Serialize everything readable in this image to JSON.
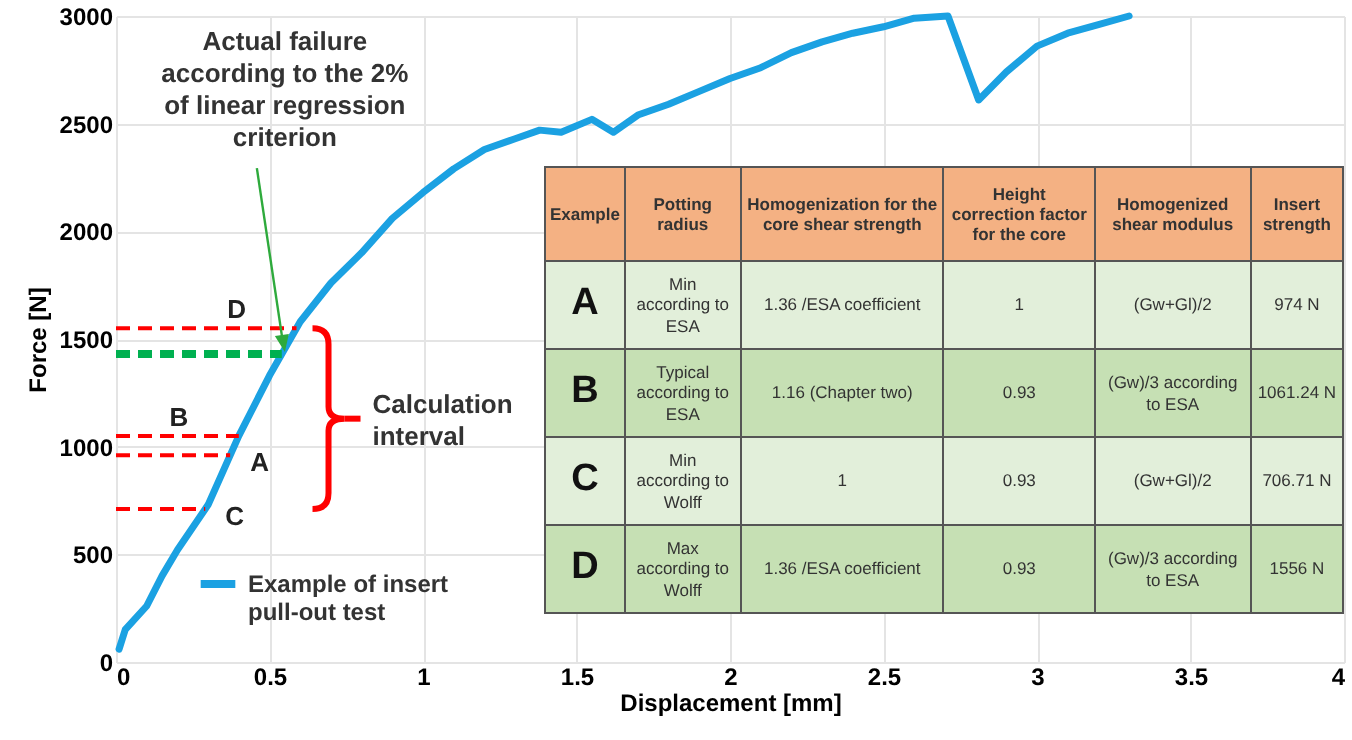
{
  "chart_data": [
    {
      "type": "line",
      "xlabel": "Displacement [mm]",
      "ylabel": "Force [N]",
      "xlim": [
        0,
        4
      ],
      "xticks": [
        0,
        0.5,
        1,
        1.5,
        2,
        2.5,
        3,
        3.5,
        4
      ],
      "ylim": [
        0,
        3000
      ],
      "yticks": [
        0,
        500,
        1000,
        1500,
        2000,
        2500,
        3000
      ],
      "grid": true,
      "legend": "bottom left",
      "x": [
        0.01,
        0.03,
        0.1,
        0.15,
        0.2,
        0.3,
        0.4,
        0.5,
        0.6,
        0.7,
        0.8,
        0.9,
        1,
        1.1,
        1.2,
        1.3,
        1.38,
        1.45,
        1.55,
        1.62,
        1.7,
        1.8,
        1.9,
        2,
        2.1,
        2.2,
        2.3,
        2.4,
        2.5,
        2.6,
        2.71,
        2.81,
        2.9,
        3,
        3.1,
        3.2,
        3.3
      ],
      "series": [
        {
          "name": "Example of insert pull-out test",
          "color": "#1ba1e2",
          "values": [
            60,
            150,
            260,
            400,
            520,
            730,
            1050,
            1330,
            1580,
            1760,
            1900,
            2060,
            2180,
            2290,
            2380,
            2430,
            2470,
            2460,
            2520,
            2460,
            2540,
            2590,
            2650,
            2710,
            2760,
            2830,
            2880,
            2920,
            2950,
            2990,
            3000,
            2610,
            2740,
            2860,
            2920,
            2960,
            3000
          ]
        }
      ],
      "ref_lines": [
        {
          "axis": "y",
          "value": 1550,
          "label": "D",
          "color": "#ff0000",
          "line_style": "dashed"
        },
        {
          "axis": "y",
          "value": 1430,
          "label": null,
          "color": "#00b050",
          "line_style": "dashed"
        },
        {
          "axis": "y",
          "value": 1050,
          "label": "B",
          "color": "#ff0000",
          "line_style": "dashed"
        },
        {
          "axis": "y",
          "value": 960,
          "label": "A",
          "color": "#ff0000",
          "line_style": "dashed"
        },
        {
          "axis": "y",
          "value": 710,
          "label": "C",
          "color": "#ff0000",
          "line_style": "dashed"
        }
      ],
      "annotations": [
        {
          "text": "Actual failure according to the 2% of linear regression criterion",
          "x": 0.55,
          "y": 1430
        },
        "Calculation interval"
      ]
    },
    {
      "type": "other",
      "categories": [
        "Example",
        "Potting radius",
        "Homogenization for the core shear strength",
        "Height correction factor for the core",
        "Homogenized shear modulus",
        "Insert strength"
      ],
      "y_categories": [
        "A",
        "B",
        "C",
        "D"
      ],
      "cell_labels": [
        [
          "Min according to ESA",
          "1.36 /ESA coefficient",
          "1",
          "(Gw+Gl)/2",
          "974 N"
        ],
        [
          "Typical according to ESA",
          "1.16 (Chapter two)",
          "0.93",
          "(Gw)/3 according to ESA",
          "1061.24 N"
        ],
        [
          "Min according to Wolff",
          "1",
          "0.93",
          "(Gw+Gl)/2",
          "706.71 N"
        ],
        [
          "Max according to Wolff",
          "1.36 /ESA coefficient",
          "0.93",
          "(Gw)/3 according to ESA",
          "1556 N"
        ]
      ]
    }
  ]
}
